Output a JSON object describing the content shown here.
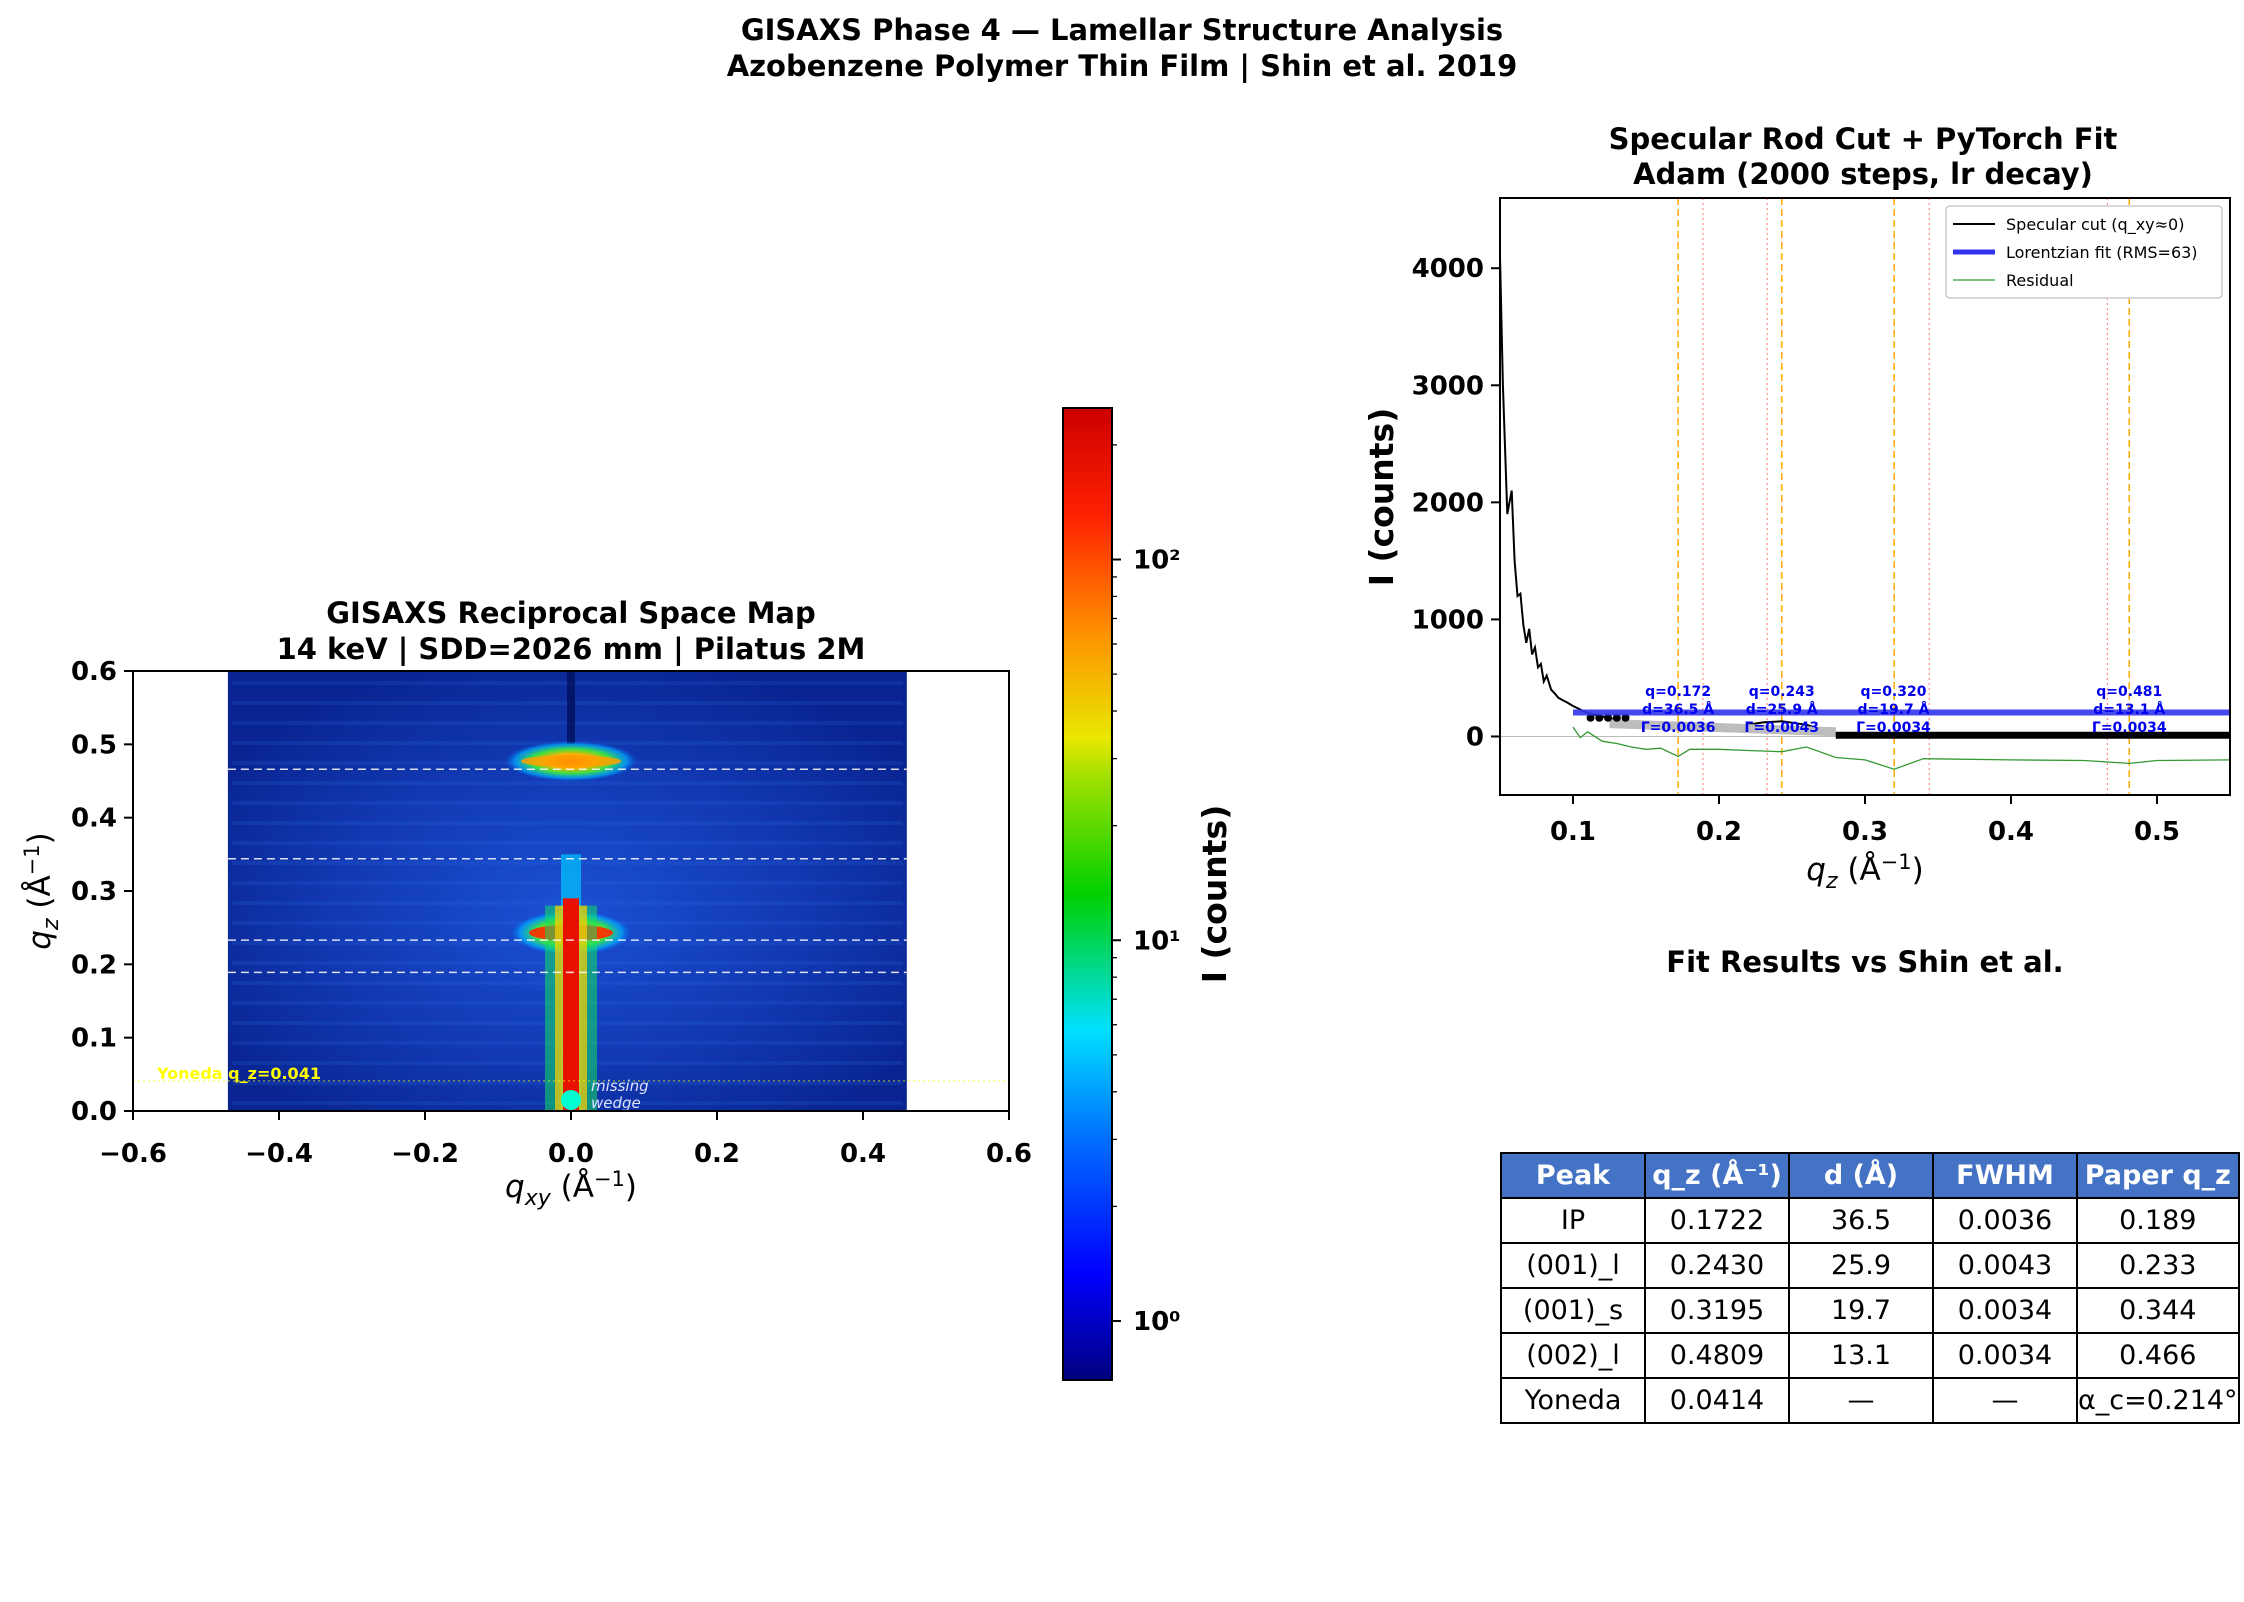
{
  "suptitle": {
    "line1": "GISAXS Phase 4 — Lamellar Structure Analysis",
    "line2": "Azobenzene Polymer Thin Film | Shin et al. 2019"
  },
  "map_panel": {
    "title1": "GISAXS Reciprocal Space Map",
    "title2": "14 keV | SDD=2026 mm | Pilatus 2M",
    "yoneda_label": "Yoneda q_z=0.041",
    "missing_wedge_1": "missing",
    "missing_wedge_2": "wedge",
    "colorbar_label": "I (counts)"
  },
  "fit_panel": {
    "title1": "Specular Rod Cut + PyTorch Fit",
    "title2": "Adam (2000 steps, lr decay)"
  },
  "table_panel": {
    "title": "Fit Results vs Shin et al."
  },
  "colors": {
    "lorentzian": "#3333ee",
    "residual": "#339933",
    "fit_vline": "#ffaa00",
    "paper_vline": "#ff8888",
    "yoneda": "#ffff00",
    "table_header_bg": "#4472C4"
  },
  "chart_data": [
    {
      "type": "heatmap",
      "title": "GISAXS Reciprocal Space Map\n14 keV | SDD=2026 mm | Pilatus 2M",
      "xlabel": "q_xy (Å⁻¹)",
      "ylabel": "q_z (Å⁻¹)",
      "xlim": [
        -0.6,
        0.6
      ],
      "ylim": [
        0.0,
        0.6
      ],
      "xticks": [
        "−0.6",
        "−0.4",
        "−0.2",
        "0.0",
        "0.2",
        "0.4",
        "0.6"
      ],
      "yticks": [
        "0.0",
        "0.1",
        "0.2",
        "0.3",
        "0.4",
        "0.5",
        "0.6"
      ],
      "data_extent_qxy": [
        -0.47,
        0.46
      ],
      "dashed_lines_qz": [
        0.189,
        0.233,
        0.344,
        0.466
      ],
      "yoneda_qz": 0.041,
      "colormap": "jet",
      "scale": "log",
      "colorbar": {
        "label": "I (counts)",
        "range": [
          0.7,
          250
        ],
        "ticks": [
          {
            "value": 1,
            "label": "10⁰"
          },
          {
            "value": 10,
            "label": "10¹"
          },
          {
            "value": 100,
            "label": "10²"
          }
        ]
      }
    },
    {
      "type": "line",
      "title": "Specular Rod Cut + PyTorch Fit\nAdam (2000 steps, lr decay)",
      "xlabel": "q_z (Å⁻¹)",
      "ylabel": "I (counts)",
      "xlim": [
        0.05,
        0.55
      ],
      "ylim": [
        -500,
        4600
      ],
      "xticks": [
        "0.1",
        "0.2",
        "0.3",
        "0.4",
        "0.5"
      ],
      "yticks": [
        "0",
        "1000",
        "2000",
        "3000",
        "4000"
      ],
      "legend_position": "top-right",
      "legend": [
        "Specular cut (q_xy≈0)",
        "Lorentzian fit (RMS=63)",
        "Residual"
      ],
      "series": [
        {
          "name": "Specular cut (q_xy≈0)",
          "x": [
            0.05,
            0.052,
            0.055,
            0.058,
            0.06,
            0.062,
            0.064,
            0.066,
            0.068,
            0.07,
            0.072,
            0.074,
            0.076,
            0.078,
            0.08,
            0.082,
            0.085,
            0.088,
            0.09,
            0.093,
            0.096,
            0.1,
            0.105,
            0.11,
            0.12,
            0.13,
            0.14,
            0.15,
            0.17,
            0.19,
            0.21,
            0.23,
            0.243,
            0.26,
            0.28,
            0.3,
            0.32,
            0.35,
            0.4,
            0.45,
            0.481,
            0.5,
            0.55
          ],
          "y": [
            4100,
            3000,
            1900,
            2100,
            1500,
            1200,
            1220,
            950,
            800,
            920,
            700,
            760,
            590,
            620,
            470,
            520,
            400,
            360,
            330,
            310,
            290,
            260,
            230,
            200,
            170,
            140,
            120,
            100,
            100,
            90,
            80,
            120,
            130,
            100,
            20,
            15,
            10,
            10,
            5,
            5,
            8,
            5,
            5
          ]
        },
        {
          "name": "Lorentzian fit (RMS=63)",
          "x": [
            0.1,
            0.15,
            0.2,
            0.25,
            0.3,
            0.35,
            0.4,
            0.45,
            0.5,
            0.55
          ],
          "y": [
            205,
            205,
            205,
            205,
            205,
            205,
            205,
            205,
            205,
            205
          ]
        },
        {
          "name": "Residual",
          "x": [
            0.1,
            0.105,
            0.11,
            0.12,
            0.13,
            0.14,
            0.15,
            0.16,
            0.172,
            0.18,
            0.2,
            0.22,
            0.243,
            0.26,
            0.28,
            0.3,
            0.32,
            0.34,
            0.4,
            0.45,
            0.481,
            0.5,
            0.55
          ],
          "y": [
            80,
            -10,
            40,
            -40,
            -60,
            -90,
            -110,
            -100,
            -170,
            -110,
            -110,
            -120,
            -130,
            -90,
            -180,
            -200,
            -280,
            -190,
            -200,
            -205,
            -230,
            -205,
            -200
          ]
        }
      ],
      "fit_peaks": [
        {
          "q": "q=0.172",
          "d": "d=36.5 Å",
          "gamma": "Γ=0.0036",
          "qz": 0.172
        },
        {
          "q": "q=0.243",
          "d": "d=25.9 Å",
          "gamma": "Γ=0.0043",
          "qz": 0.243
        },
        {
          "q": "q=0.320",
          "d": "d=19.7 Å",
          "gamma": "Γ=0.0034",
          "qz": 0.32
        },
        {
          "q": "q=0.481",
          "d": "d=13.1 Å",
          "gamma": "Γ=0.0034",
          "qz": 0.481
        }
      ],
      "paper_peaks_qz": [
        0.189,
        0.233,
        0.344,
        0.466
      ]
    },
    {
      "type": "table",
      "title": "Fit Results vs Shin et al.",
      "columns": [
        "Peak",
        "q_z (Å⁻¹)",
        "d (Å)",
        "FWHM",
        "Paper q_z"
      ],
      "rows": [
        [
          "IP",
          "0.1722",
          "36.5",
          "0.0036",
          "0.189"
        ],
        [
          "(001)_l",
          "0.2430",
          "25.9",
          "0.0043",
          "0.233"
        ],
        [
          "(001)_s",
          "0.3195",
          "19.7",
          "0.0034",
          "0.344"
        ],
        [
          "(002)_l",
          "0.4809",
          "13.1",
          "0.0034",
          "0.466"
        ],
        [
          "Yoneda",
          "0.0414",
          "—",
          "—",
          "α_c=0.214°"
        ]
      ]
    }
  ]
}
